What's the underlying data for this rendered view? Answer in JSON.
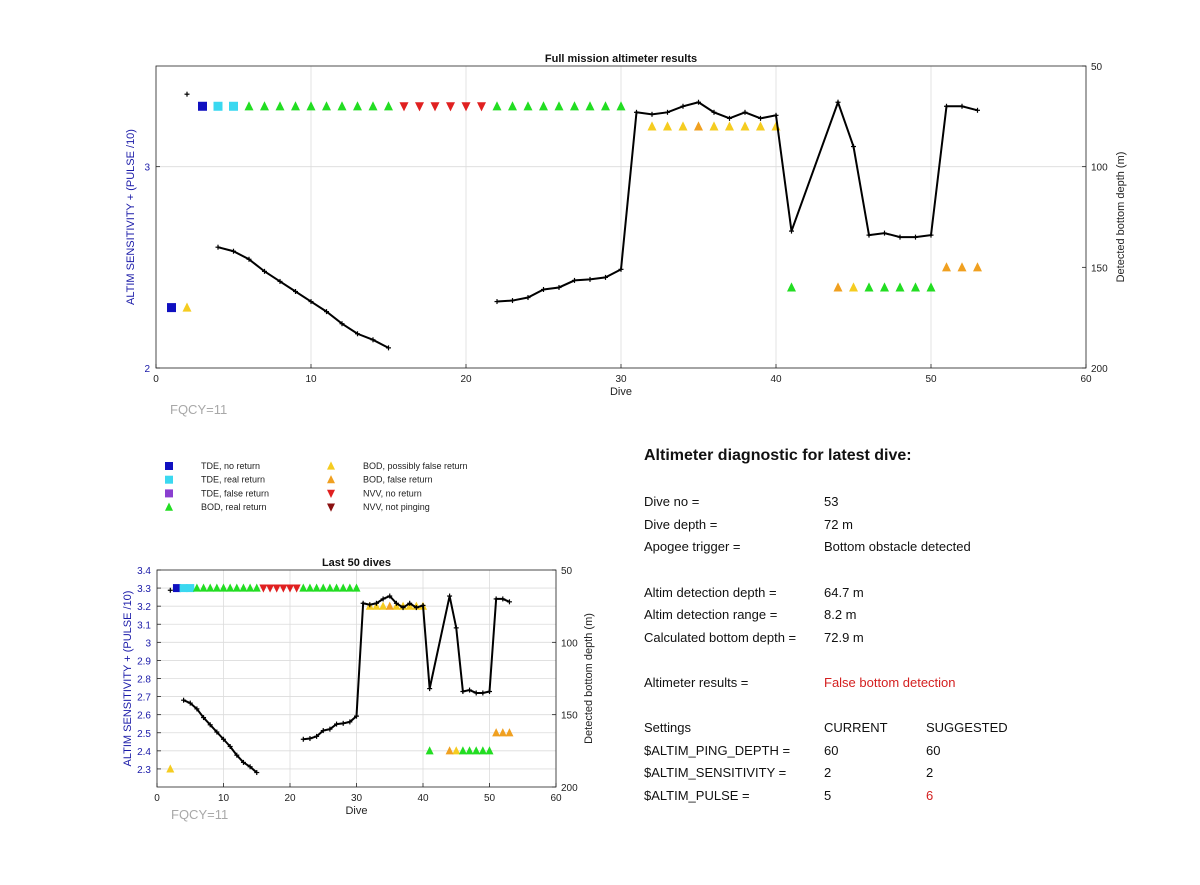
{
  "chart_data": [
    {
      "type": "scatter",
      "title": "Full mission altimeter results",
      "xlabel": "Dive",
      "ylabel_left": "ALTIM SENSITIVITY + (PULSE /10)",
      "ylabel_right": "Detected bottom depth (m)",
      "xlim": [
        0,
        60
      ],
      "ylim_left": [
        2,
        3.5
      ],
      "ylim_right_reversed": [
        50,
        200
      ],
      "xticks": [
        "0",
        "10",
        "20",
        "30",
        "40",
        "50",
        "60"
      ],
      "yticks_left": [
        "2",
        "3"
      ],
      "yticks_right": [
        "50",
        "100",
        "150",
        "200"
      ],
      "grid": true,
      "annotation": "FQCY=11",
      "depth_line": {
        "segments": [
          [
            [
              2,
              64
            ]
          ],
          [
            [
              4,
              140
            ],
            [
              5,
              142
            ],
            [
              6,
              146
            ],
            [
              7,
              152
            ],
            [
              8,
              157
            ],
            [
              9,
              162
            ],
            [
              10,
              167
            ],
            [
              11,
              172
            ],
            [
              12,
              178
            ],
            [
              13,
              183
            ],
            [
              14,
              186
            ],
            [
              15,
              190
            ]
          ],
          [
            [
              22,
              167
            ],
            [
              23,
              166.5
            ],
            [
              24,
              165
            ],
            [
              25,
              161
            ],
            [
              26,
              160
            ],
            [
              27,
              156.5
            ],
            [
              28,
              156
            ],
            [
              29,
              155
            ],
            [
              30,
              151
            ],
            [
              31,
              73
            ],
            [
              32,
              74
            ],
            [
              33,
              73
            ],
            [
              34,
              70
            ],
            [
              35,
              68
            ],
            [
              36,
              73
            ],
            [
              37,
              76
            ],
            [
              38,
              73
            ],
            [
              39,
              76
            ],
            [
              40,
              74.5
            ],
            [
              41,
              132
            ],
            [
              44,
              68
            ],
            [
              45,
              90
            ],
            [
              46,
              134
            ],
            [
              47,
              133
            ],
            [
              48,
              135
            ],
            [
              49,
              135
            ],
            [
              50,
              134
            ],
            [
              51,
              70
            ],
            [
              52,
              70
            ],
            [
              53,
              72
            ]
          ]
        ]
      },
      "markers_left": [
        {
          "series": "TDE, no return",
          "x": [
            1,
            3
          ],
          "y": [
            2.3,
            3.3
          ]
        },
        {
          "series": "TDE, real return",
          "x": [
            4,
            5
          ],
          "y": [
            3.3,
            3.3
          ]
        },
        {
          "series": "BOD, possibly false return",
          "x": [
            2,
            32,
            33,
            34,
            36,
            37,
            38,
            39,
            40,
            45
          ],
          "y": [
            2.3,
            3.2,
            3.2,
            3.2,
            3.2,
            3.2,
            3.2,
            3.2,
            3.2,
            2.4
          ]
        },
        {
          "series": "BOD, false return",
          "x": [
            35,
            44,
            51,
            52,
            53
          ],
          "y": [
            3.2,
            2.4,
            2.5,
            2.5,
            2.5
          ]
        },
        {
          "series": "BOD, real return",
          "x": [
            6,
            7,
            8,
            9,
            10,
            11,
            12,
            13,
            14,
            15,
            22,
            23,
            24,
            25,
            26,
            27,
            28,
            29,
            30,
            41,
            46,
            47,
            48,
            49,
            50
          ],
          "y": [
            3.3,
            3.3,
            3.3,
            3.3,
            3.3,
            3.3,
            3.3,
            3.3,
            3.3,
            3.3,
            3.3,
            3.3,
            3.3,
            3.3,
            3.3,
            3.3,
            3.3,
            3.3,
            3.3,
            2.4,
            2.4,
            2.4,
            2.4,
            2.4,
            2.4
          ]
        },
        {
          "series": "NVV, no return",
          "x": [
            16,
            17,
            18,
            19,
            20,
            21
          ],
          "y": [
            3.3,
            3.3,
            3.3,
            3.3,
            3.3,
            3.3
          ]
        }
      ]
    },
    {
      "type": "scatter",
      "title": "Last 50 dives",
      "xlabel": "Dive",
      "ylabel_left": "ALTIM SENSITIVITY + (PULSE /10)",
      "ylabel_right": "Detected bottom depth (m)",
      "xlim": [
        0,
        60
      ],
      "ylim_left": [
        2.2,
        3.4
      ],
      "ylim_right_reversed": [
        50,
        200
      ],
      "xticks": [
        "0",
        "10",
        "20",
        "30",
        "40",
        "50",
        "60"
      ],
      "yticks_left": [
        "2.3",
        "2.4",
        "2.5",
        "2.6",
        "2.7",
        "2.8",
        "2.9",
        "3",
        "3.1",
        "3.2",
        "3.3",
        "3.4"
      ],
      "yticks_right": [
        "50",
        "100",
        "150",
        "200"
      ],
      "grid": true,
      "annotation": "FQCY=11",
      "depth_line": {
        "segments": [
          [
            [
              2,
              64
            ]
          ],
          [
            [
              4,
              140
            ],
            [
              5,
              142
            ],
            [
              6,
              146
            ],
            [
              7,
              152
            ],
            [
              8,
              157
            ],
            [
              9,
              162
            ],
            [
              10,
              167
            ],
            [
              11,
              172
            ],
            [
              12,
              178
            ],
            [
              13,
              183
            ],
            [
              14,
              186
            ],
            [
              15,
              190
            ]
          ],
          [
            [
              22,
              167
            ],
            [
              23,
              166.5
            ],
            [
              24,
              165
            ],
            [
              25,
              161
            ],
            [
              26,
              160
            ],
            [
              27,
              156.5
            ],
            [
              28,
              156
            ],
            [
              29,
              155
            ],
            [
              30,
              151
            ],
            [
              31,
              73
            ],
            [
              32,
              74
            ],
            [
              33,
              73
            ],
            [
              34,
              70
            ],
            [
              35,
              68
            ],
            [
              36,
              73
            ],
            [
              37,
              76
            ],
            [
              38,
              73
            ],
            [
              39,
              76
            ],
            [
              40,
              74.5
            ],
            [
              41,
              132
            ],
            [
              44,
              68
            ],
            [
              45,
              90
            ],
            [
              46,
              134
            ],
            [
              47,
              133
            ],
            [
              48,
              135
            ],
            [
              49,
              135
            ],
            [
              50,
              134
            ],
            [
              51,
              70
            ],
            [
              52,
              70
            ],
            [
              53,
              72
            ]
          ]
        ]
      },
      "markers_left": [
        {
          "series": "TDE, no return",
          "x": [
            3
          ],
          "y": [
            3.3
          ]
        },
        {
          "series": "TDE, real return",
          "x": [
            4,
            5
          ],
          "y": [
            3.3,
            3.3
          ]
        },
        {
          "series": "BOD, possibly false return",
          "x": [
            2,
            32,
            33,
            34,
            36,
            37,
            38,
            39,
            40,
            45
          ],
          "y": [
            2.3,
            3.2,
            3.2,
            3.2,
            3.2,
            3.2,
            3.2,
            3.2,
            3.2,
            2.4
          ]
        },
        {
          "series": "BOD, false return",
          "x": [
            35,
            44,
            51,
            52,
            53
          ],
          "y": [
            3.2,
            2.4,
            2.5,
            2.5,
            2.5
          ]
        },
        {
          "series": "BOD, real return",
          "x": [
            6,
            7,
            8,
            9,
            10,
            11,
            12,
            13,
            14,
            15,
            22,
            23,
            24,
            25,
            26,
            27,
            28,
            29,
            30,
            41,
            46,
            47,
            48,
            49,
            50
          ],
          "y": [
            3.3,
            3.3,
            3.3,
            3.3,
            3.3,
            3.3,
            3.3,
            3.3,
            3.3,
            3.3,
            3.3,
            3.3,
            3.3,
            3.3,
            3.3,
            3.3,
            3.3,
            3.3,
            3.3,
            2.4,
            2.4,
            2.4,
            2.4,
            2.4,
            2.4
          ]
        },
        {
          "series": "NVV, no return",
          "x": [
            16,
            17,
            18,
            19,
            20,
            21
          ],
          "y": [
            3.3,
            3.3,
            3.3,
            3.3,
            3.3,
            3.3
          ]
        }
      ]
    }
  ],
  "legend": [
    {
      "label": "TDE, no return",
      "marker": "square",
      "color": "#1010c0"
    },
    {
      "label": "TDE, real return",
      "marker": "square",
      "color": "#3ad8f0"
    },
    {
      "label": "TDE, false return",
      "marker": "square",
      "color": "#8a3fd0"
    },
    {
      "label": "BOD, real return",
      "marker": "triangle-up",
      "color": "#22dd22"
    },
    {
      "label": "BOD, possibly false return",
      "marker": "triangle-up",
      "color": "#f5cc20"
    },
    {
      "label": "BOD, false return",
      "marker": "triangle-up",
      "color": "#f0a020"
    },
    {
      "label": "NVV, no return",
      "marker": "triangle-down",
      "color": "#e02020"
    },
    {
      "label": "NVV, not pinging",
      "marker": "triangle-down",
      "color": "#8a1010"
    }
  ],
  "colors": {
    "axis_label_left": "#1a1aa8",
    "tick_left": "#1a1aa8",
    "line": "#000000",
    "grid": "#dcdcdc",
    "alert": "#d42020"
  },
  "diagnostic": {
    "title": "Altimeter diagnostic for latest dive:",
    "rows": [
      {
        "label": "Dive no =",
        "value": "53"
      },
      {
        "label": "Dive depth =",
        "value": "72 m"
      },
      {
        "label": "Apogee trigger =",
        "value": "Bottom obstacle detected"
      },
      {
        "label": "Altim detection depth =",
        "value": "64.7 m"
      },
      {
        "label": "Altim detection range =",
        "value": "8.2 m"
      },
      {
        "label": "Calculated bottom depth =",
        "value": "72.9 m"
      },
      {
        "label": "Altimeter results =",
        "value": "False bottom detection"
      }
    ],
    "settings_header": {
      "label": "Settings",
      "current": "CURRENT",
      "suggested": "SUGGESTED"
    },
    "settings": [
      {
        "label": "$ALTIM_PING_DEPTH =",
        "current": "60",
        "suggested": "60"
      },
      {
        "label": "$ALTIM_SENSITIVITY =",
        "current": "2",
        "suggested": "2"
      },
      {
        "label": "$ALTIM_PULSE =",
        "current": "5",
        "suggested": "6"
      }
    ]
  }
}
